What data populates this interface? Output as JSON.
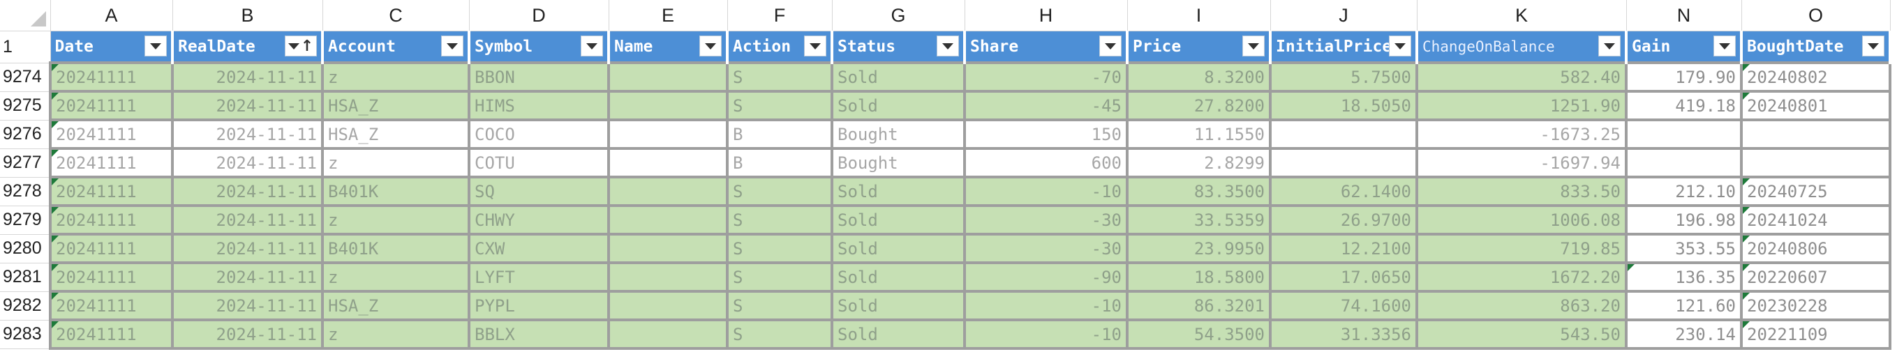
{
  "columns": [
    "A",
    "B",
    "C",
    "D",
    "E",
    "F",
    "G",
    "H",
    "I",
    "J",
    "K",
    "N",
    "O"
  ],
  "header_row_number": "1",
  "headers": [
    "Date",
    "RealDate",
    "Account",
    "Symbol",
    "Name",
    "Action",
    "Status",
    "Share",
    "Price",
    "InitialPrice",
    "ChangeOnBalance",
    "Gain",
    "BoughtDate"
  ],
  "sort_indicator": "↑",
  "rows": [
    {
      "n": "9274",
      "type": "sold",
      "date": "20241111",
      "realdate": "2024-11-11",
      "account": "z",
      "symbol": "BBON",
      "name": "",
      "action": "S",
      "status": "Sold",
      "share": "-70",
      "price": "8.3200",
      "initial": "5.7500",
      "change": "582.40",
      "gain": "179.90",
      "bought": "20240802"
    },
    {
      "n": "9275",
      "type": "sold",
      "date": "20241111",
      "realdate": "2024-11-11",
      "account": "HSA_Z",
      "symbol": "HIMS",
      "name": "",
      "action": "S",
      "status": "Sold",
      "share": "-45",
      "price": "27.8200",
      "initial": "18.5050",
      "change": "1251.90",
      "gain": "419.18",
      "bought": "20240801"
    },
    {
      "n": "9276",
      "type": "bought",
      "date": "20241111",
      "realdate": "2024-11-11",
      "account": "HSA_Z",
      "symbol": "COCO",
      "name": "",
      "action": "B",
      "status": "Bought",
      "share": "150",
      "price": "11.1550",
      "initial": "",
      "change": "-1673.25",
      "gain": "",
      "bought": ""
    },
    {
      "n": "9277",
      "type": "bought",
      "date": "20241111",
      "realdate": "2024-11-11",
      "account": "z",
      "symbol": "COTU",
      "name": "",
      "action": "B",
      "status": "Bought",
      "share": "600",
      "price": "2.8299",
      "initial": "",
      "change": "-1697.94",
      "gain": "",
      "bought": ""
    },
    {
      "n": "9278",
      "type": "sold",
      "date": "20241111",
      "realdate": "2024-11-11",
      "account": "B401K",
      "symbol": "SQ",
      "name": "",
      "action": "S",
      "status": "Sold",
      "share": "-10",
      "price": "83.3500",
      "initial": "62.1400",
      "change": "833.50",
      "gain": "212.10",
      "bought": "20240725"
    },
    {
      "n": "9279",
      "type": "sold",
      "date": "20241111",
      "realdate": "2024-11-11",
      "account": "z",
      "symbol": "CHWY",
      "name": "",
      "action": "S",
      "status": "Sold",
      "share": "-30",
      "price": "33.5359",
      "initial": "26.9700",
      "change": "1006.08",
      "gain": "196.98",
      "bought": "20241024"
    },
    {
      "n": "9280",
      "type": "sold",
      "date": "20241111",
      "realdate": "2024-11-11",
      "account": "B401K",
      "symbol": "CXW",
      "name": "",
      "action": "S",
      "status": "Sold",
      "share": "-30",
      "price": "23.9950",
      "initial": "12.2100",
      "change": "719.85",
      "gain": "353.55",
      "bought": "20240806"
    },
    {
      "n": "9281",
      "type": "sold",
      "date": "20241111",
      "realdate": "2024-11-11",
      "account": "z",
      "symbol": "LYFT",
      "name": "",
      "action": "S",
      "status": "Sold",
      "share": "-90",
      "price": "18.5800",
      "initial": "17.0650",
      "change": "1672.20",
      "gain": "136.35",
      "bought": "20220607"
    },
    {
      "n": "9282",
      "type": "sold",
      "date": "20241111",
      "realdate": "2024-11-11",
      "account": "HSA_Z",
      "symbol": "PYPL",
      "name": "",
      "action": "S",
      "status": "Sold",
      "share": "-10",
      "price": "86.3201",
      "initial": "74.1600",
      "change": "863.20",
      "gain": "121.60",
      "bought": "20230228"
    },
    {
      "n": "9283",
      "type": "sold",
      "date": "20241111",
      "realdate": "2024-11-11",
      "account": "z",
      "symbol": "BBLX",
      "name": "",
      "action": "S",
      "status": "Sold",
      "share": "-10",
      "price": "54.3500",
      "initial": "31.3356",
      "change": "543.50",
      "gain": "230.14",
      "bought": "20221109"
    }
  ],
  "colors": {
    "header_bg": "#4d8fd6",
    "sold_row_bg": "#c6e0b4",
    "bought_row_bg": "#ffffff",
    "grid_border": "#9e9e9e",
    "indicator_green": "#1e7a3a"
  }
}
